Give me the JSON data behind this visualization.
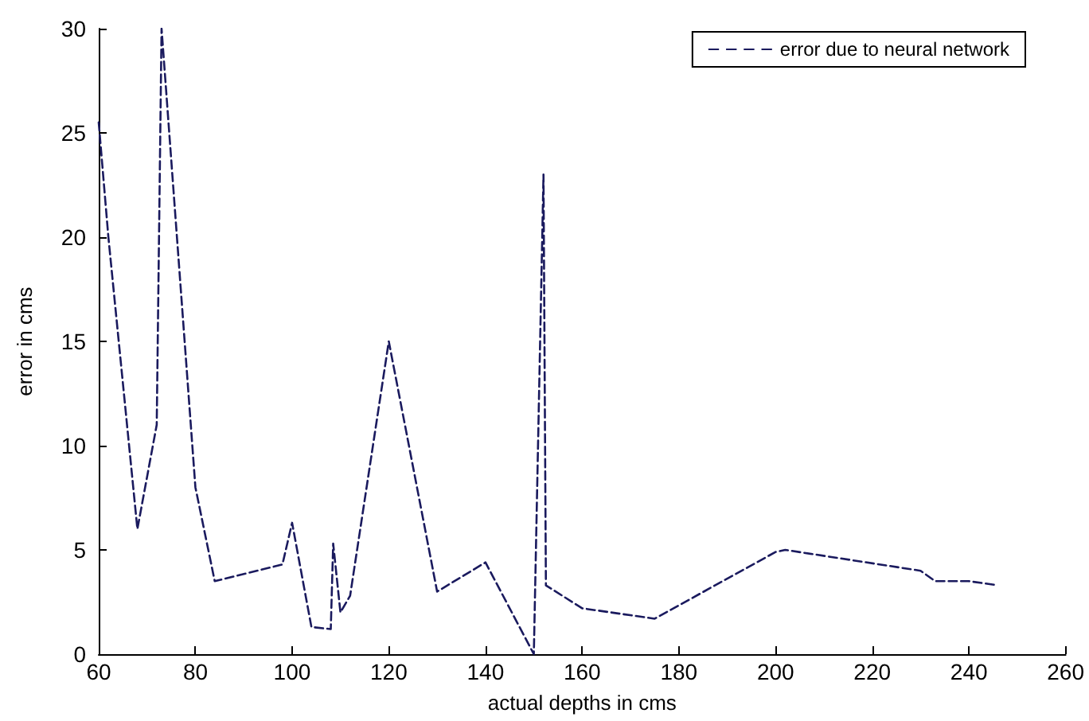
{
  "chart_data": {
    "type": "line",
    "xlabel": "actual depths in cms",
    "ylabel": "error in cms",
    "xlim": [
      60,
      260
    ],
    "xticks": [
      60,
      80,
      100,
      120,
      140,
      160,
      180,
      200,
      220,
      240,
      260
    ],
    "ylim": [
      0,
      30
    ],
    "yticks": [
      0,
      5,
      10,
      15,
      20,
      25,
      30
    ],
    "legend": "top right",
    "grid": false,
    "marker": "none",
    "line_style": "dashed",
    "series": [
      {
        "name": "error due to neural network",
        "color": "#1a1a5e",
        "x": [
          60,
          62,
          68,
          72,
          73,
          80,
          84,
          98,
          100,
          104,
          108,
          108.5,
          110,
          112,
          120,
          130,
          140,
          150,
          152,
          152.5,
          160,
          175,
          200,
          202,
          230,
          233,
          240,
          246
        ],
        "values": [
          25.5,
          20,
          6,
          11,
          30,
          8,
          3.5,
          4.3,
          6.3,
          1.3,
          1.2,
          5.3,
          2,
          2.8,
          15,
          3,
          4.4,
          0,
          23,
          3.3,
          2.2,
          1.7,
          4.9,
          5,
          4,
          3.5,
          3.5,
          3.3
        ]
      }
    ]
  }
}
